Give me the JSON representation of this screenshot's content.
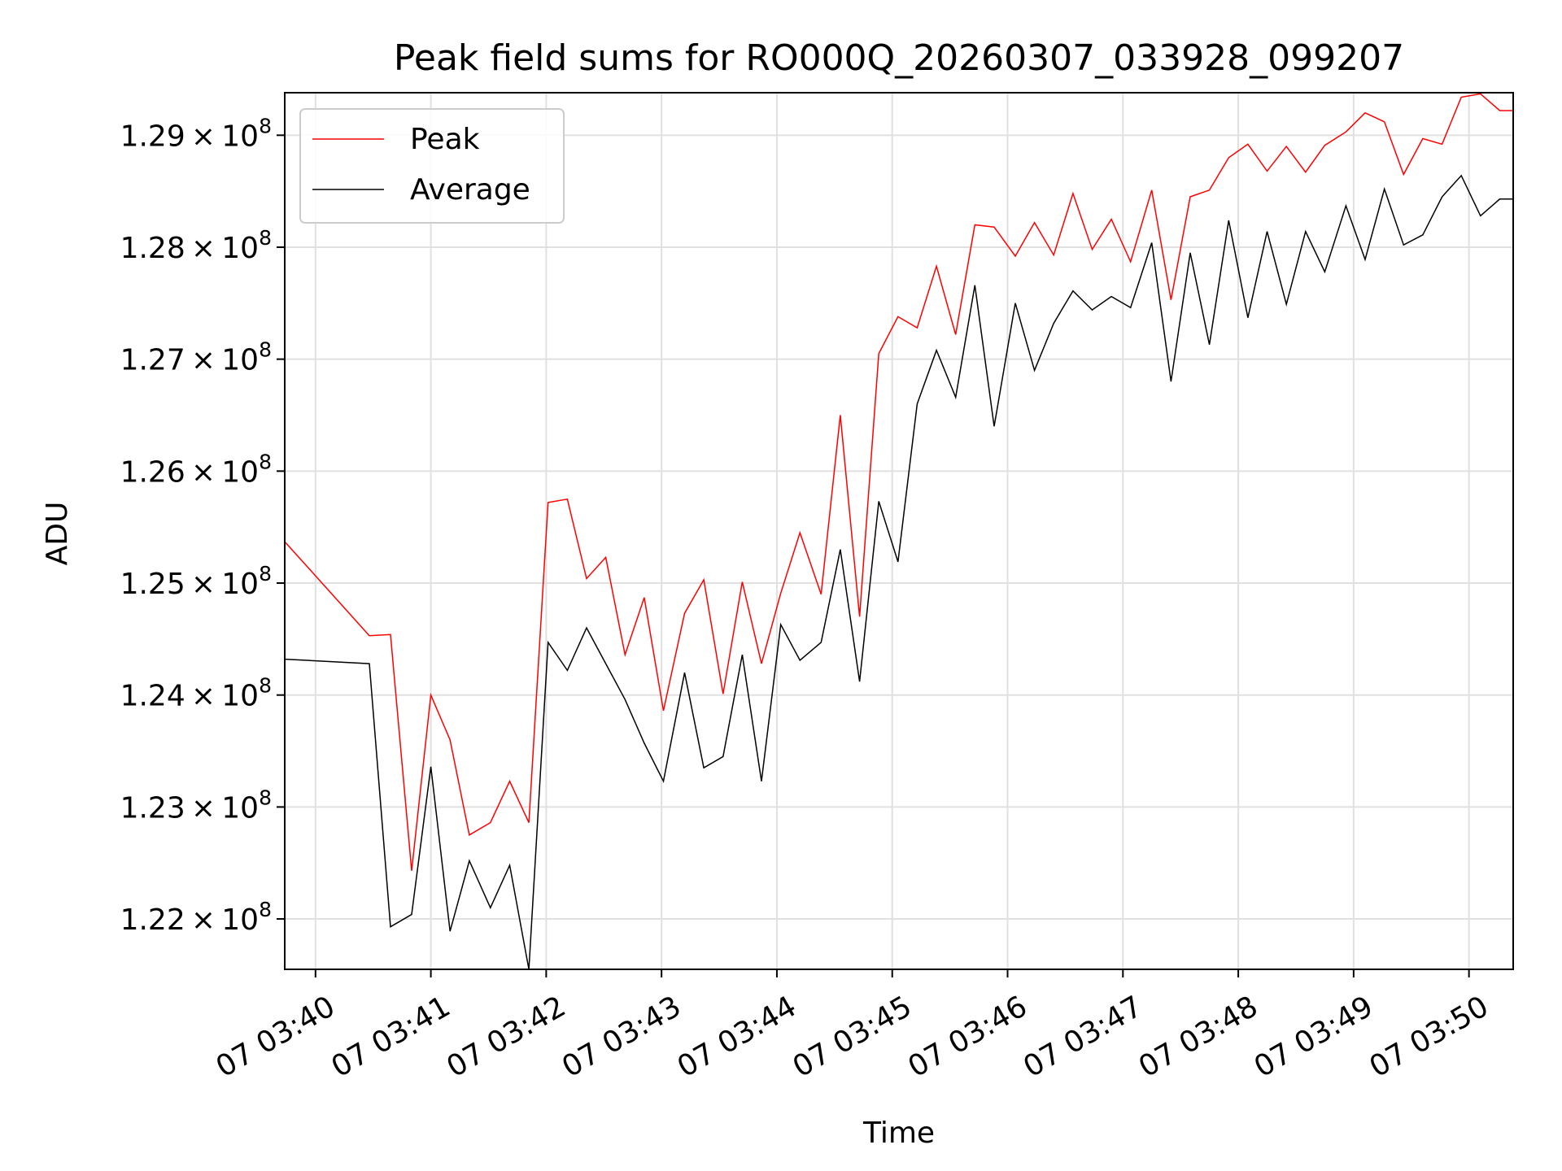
{
  "chart_data": {
    "type": "line",
    "title": "Peak field sums for RO000Q_20260307_033928_099207",
    "xlabel": "Time",
    "ylabel": "ADU",
    "x_tick_labels": [
      "07 03:40",
      "07 03:41",
      "07 03:42",
      "07 03:43",
      "07 03:44",
      "07 03:45",
      "07 03:46",
      "07 03:47",
      "07 03:48",
      "07 03:49",
      "07 03:50"
    ],
    "y_tick_labels": [
      {
        "mantissa": "1.22",
        "exponent": "8"
      },
      {
        "mantissa": "1.23",
        "exponent": "8"
      },
      {
        "mantissa": "1.24",
        "exponent": "8"
      },
      {
        "mantissa": "1.25",
        "exponent": "8"
      },
      {
        "mantissa": "1.26",
        "exponent": "8"
      },
      {
        "mantissa": "1.27",
        "exponent": "8"
      },
      {
        "mantissa": "1.28",
        "exponent": "8"
      },
      {
        "mantissa": "1.29",
        "exponent": "8"
      }
    ],
    "y_tick_values": [
      122000000,
      123000000,
      124000000,
      125000000,
      126000000,
      127000000,
      128000000,
      129000000
    ],
    "y_times_symbol": "×",
    "y_base": "10",
    "ylim": [
      121550000,
      129380000
    ],
    "xlim": [
      "03:39:44",
      "03:50:23"
    ],
    "grid": true,
    "legend_position": "upper-left",
    "x": [
      "03:39:44",
      "03:40:28",
      "03:40:39",
      "03:40:50",
      "03:41:00",
      "03:41:10",
      "03:41:20",
      "03:41:31",
      "03:41:41",
      "03:41:51",
      "03:42:01",
      "03:42:11",
      "03:42:21",
      "03:42:31",
      "03:42:41",
      "03:42:51",
      "03:43:01",
      "03:43:12",
      "03:43:22",
      "03:43:32",
      "03:43:42",
      "03:43:52",
      "03:44:02",
      "03:44:12",
      "03:44:23",
      "03:44:33",
      "03:44:43",
      "03:44:53",
      "03:45:03",
      "03:45:13",
      "03:45:23",
      "03:45:33",
      "03:45:43",
      "03:45:53",
      "03:46:04",
      "03:46:14",
      "03:46:24",
      "03:46:34",
      "03:46:44",
      "03:46:54",
      "03:47:04",
      "03:47:15",
      "03:47:25",
      "03:47:35",
      "03:47:45",
      "03:47:55",
      "03:48:05",
      "03:48:15",
      "03:48:25",
      "03:48:35",
      "03:48:45",
      "03:48:56",
      "03:49:06",
      "03:49:16",
      "03:49:26",
      "03:49:36",
      "03:49:46",
      "03:49:56",
      "03:50:06",
      "03:50:16",
      "03:50:23"
    ],
    "series": [
      {
        "name": "Peak",
        "color": "#ff0000",
        "values": [
          125370000,
          124530000,
          124540000,
          122430000,
          124000000,
          123600000,
          122750000,
          122860000,
          123230000,
          122860000,
          125720000,
          125750000,
          125040000,
          125230000,
          124360000,
          124870000,
          123860000,
          124730000,
          125030000,
          124010000,
          125010000,
          124280000,
          124910000,
          125450000,
          124900000,
          126500000,
          124700000,
          127050000,
          127380000,
          127280000,
          127830000,
          127220000,
          128200000,
          128180000,
          127920000,
          128220000,
          127930000,
          128480000,
          127980000,
          128250000,
          127870000,
          128510000,
          127530000,
          128450000,
          128510000,
          128800000,
          128920000,
          128680000,
          128900000,
          128670000,
          128910000,
          129030000,
          129200000,
          129120000,
          128650000,
          128970000,
          128920000,
          129340000,
          129370000,
          129220000,
          129220000
        ]
      },
      {
        "name": "Average",
        "color": "#000000",
        "values": [
          124320000,
          124280000,
          121930000,
          122040000,
          123360000,
          121890000,
          122520000,
          122100000,
          122480000,
          121550000,
          124470000,
          124220000,
          124600000,
          124280000,
          123960000,
          123570000,
          123230000,
          124200000,
          123350000,
          123450000,
          124360000,
          123230000,
          124630000,
          124310000,
          124470000,
          125300000,
          124120000,
          125730000,
          125190000,
          126600000,
          127080000,
          126660000,
          127660000,
          126400000,
          127500000,
          126900000,
          127320000,
          127610000,
          127440000,
          127560000,
          127460000,
          128040000,
          126800000,
          127950000,
          127130000,
          128240000,
          127370000,
          128140000,
          127490000,
          128140000,
          127780000,
          128370000,
          127890000,
          128520000,
          128020000,
          128110000,
          128450000,
          128640000,
          128280000,
          128430000,
          128430000
        ]
      }
    ]
  }
}
